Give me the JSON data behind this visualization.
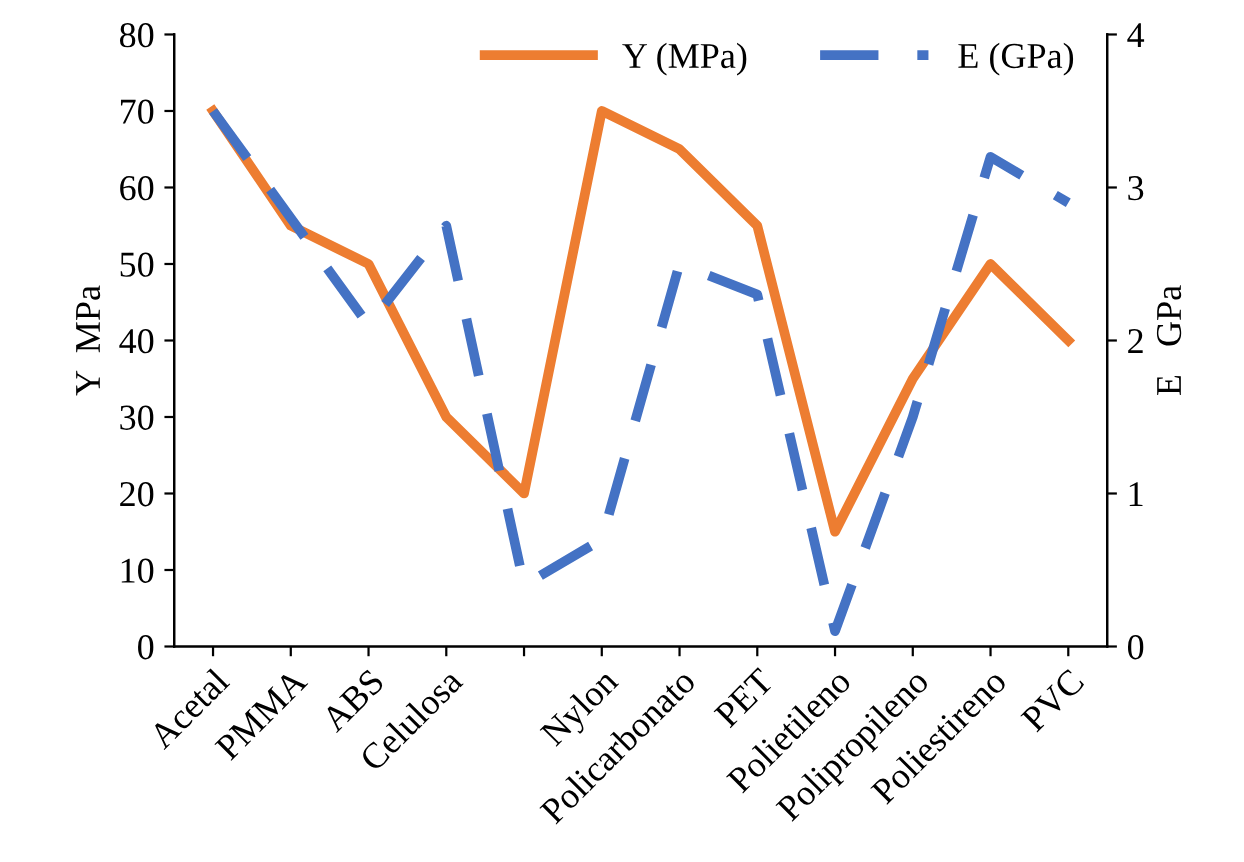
{
  "chart_data": {
    "type": "line",
    "ylabel": "Y  MPa",
    "y2label": "E   GPa",
    "categories": [
      "Acetal",
      "PMMA",
      "ABS",
      "Celulosa",
      null,
      "Nylon",
      "Policarbonato",
      "PET",
      "Polietileno",
      "Polipropileno",
      "Poliestireno",
      "PVC"
    ],
    "series": [
      {
        "name": "Y (MPa)",
        "color": "#ed7d31",
        "line_style": "solid",
        "values": [
          70,
          55,
          50,
          30,
          20,
          70,
          65,
          55,
          15,
          35,
          50,
          40
        ]
      },
      {
        "name": "E (GPa)",
        "color": "#4472c4",
        "line_style": "dashed",
        "axis": "y2",
        "values": [
          3.5,
          2.8,
          2.1,
          2.75,
          0.4,
          0.7,
          2.5,
          2.3,
          0.1,
          1.5,
          3.2,
          2.9
        ]
      }
    ],
    "ylim": [
      0,
      80
    ],
    "yticks": [
      0,
      10,
      20,
      30,
      40,
      50,
      60,
      70,
      80
    ],
    "y2lim": [
      0,
      4
    ],
    "y2ticks": [
      0,
      1,
      2,
      3,
      4
    ],
    "legend": "top right",
    "grid": false,
    "marker": "none"
  }
}
